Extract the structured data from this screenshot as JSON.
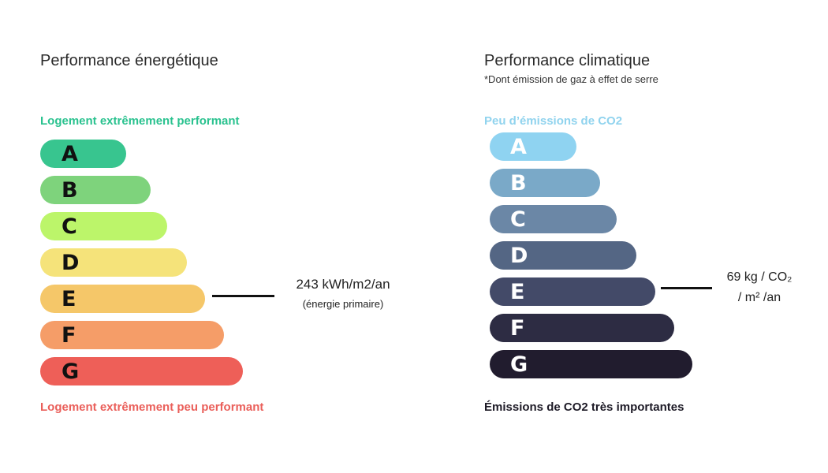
{
  "energy": {
    "title": "Performance énergétique",
    "top_label": "Logement extrêmement performant",
    "bottom_label": "Logement extrêmement peu performant",
    "colors": {
      "top_label": "#2ac28f",
      "bottom_label": "#ea5f5a"
    },
    "classes": [
      {
        "letter": "A",
        "color": "#38c58f"
      },
      {
        "letter": "B",
        "color": "#7ed37c"
      },
      {
        "letter": "C",
        "color": "#bcf56a"
      },
      {
        "letter": "D",
        "color": "#f5e37a"
      },
      {
        "letter": "E",
        "color": "#f5c769"
      },
      {
        "letter": "F",
        "color": "#f59d68"
      },
      {
        "letter": "G",
        "color": "#ee5f58"
      }
    ],
    "selected_class": "E",
    "value": "243 kWh/m2/an",
    "value_note": "(énergie primaire)"
  },
  "climate": {
    "title": "Performance climatique",
    "subtitle": "*Dont émission de gaz à effet de serre",
    "top_label": "Peu d’émissions de CO2",
    "bottom_label": "Émissions de CO2 très importantes",
    "colors": {
      "top_label": "#90d3ee",
      "bottom_label": "#1d1a26"
    },
    "classes": [
      {
        "letter": "A",
        "color": "#8fd3f1"
      },
      {
        "letter": "B",
        "color": "#7aa9c8"
      },
      {
        "letter": "C",
        "color": "#6b87a6"
      },
      {
        "letter": "D",
        "color": "#546684"
      },
      {
        "letter": "E",
        "color": "#434a68"
      },
      {
        "letter": "F",
        "color": "#2d2c43"
      },
      {
        "letter": "G",
        "color": "#211c2e"
      }
    ],
    "selected_class": "E",
    "value_line1": "69 kg / CO₂",
    "value_line2": "/ m² /an"
  }
}
